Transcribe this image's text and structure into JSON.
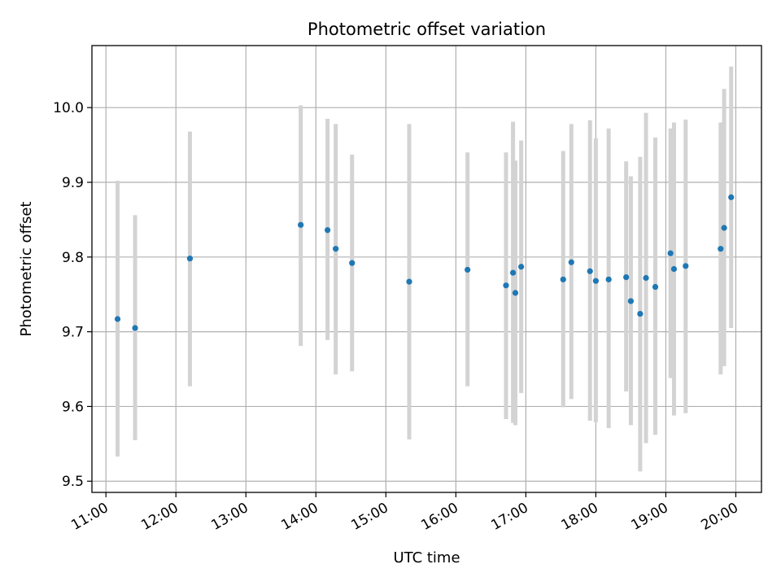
{
  "chart_data": {
    "type": "scatter",
    "title": "Photometric offset variation",
    "xlabel": "UTC time",
    "ylabel": "Photometric offset",
    "xlim": [
      "10:48",
      "20:22"
    ],
    "ylim": [
      9.485,
      10.083
    ],
    "x_ticks": [
      "11:00",
      "12:00",
      "13:00",
      "14:00",
      "15:00",
      "16:00",
      "17:00",
      "18:00",
      "19:00",
      "20:00"
    ],
    "y_ticks": [
      9.5,
      9.6,
      9.7,
      9.8,
      9.9,
      10.0
    ],
    "y_tick_labels": [
      "9.5",
      "9.6",
      "9.7",
      "9.8",
      "9.9",
      "10.0"
    ],
    "grid": true,
    "point_color": "#1f77b4",
    "errorbar_color": "#d3d3d3",
    "points": [
      {
        "x": "11:10",
        "y": 9.717,
        "y_low": 9.533,
        "y_high": 9.902
      },
      {
        "x": "11:25",
        "y": 9.705,
        "y_low": 9.555,
        "y_high": 9.856
      },
      {
        "x": "12:12",
        "y": 9.798,
        "y_low": 9.627,
        "y_high": 9.968
      },
      {
        "x": "13:47",
        "y": 9.843,
        "y_low": 9.681,
        "y_high": 10.003
      },
      {
        "x": "14:10",
        "y": 9.836,
        "y_low": 9.689,
        "y_high": 9.985
      },
      {
        "x": "14:17",
        "y": 9.811,
        "y_low": 9.643,
        "y_high": 9.978
      },
      {
        "x": "14:31",
        "y": 9.792,
        "y_low": 9.647,
        "y_high": 9.937
      },
      {
        "x": "15:20",
        "y": 9.767,
        "y_low": 9.556,
        "y_high": 9.978
      },
      {
        "x": "16:10",
        "y": 9.783,
        "y_low": 9.627,
        "y_high": 9.94
      },
      {
        "x": "16:43",
        "y": 9.762,
        "y_low": 9.583,
        "y_high": 9.94
      },
      {
        "x": "16:49",
        "y": 9.779,
        "y_low": 9.578,
        "y_high": 9.981
      },
      {
        "x": "16:51",
        "y": 9.752,
        "y_low": 9.575,
        "y_high": 9.929
      },
      {
        "x": "16:56",
        "y": 9.787,
        "y_low": 9.618,
        "y_high": 9.956
      },
      {
        "x": "17:32",
        "y": 9.77,
        "y_low": 9.599,
        "y_high": 9.942
      },
      {
        "x": "17:39",
        "y": 9.793,
        "y_low": 9.61,
        "y_high": 9.978
      },
      {
        "x": "17:55",
        "y": 9.781,
        "y_low": 9.581,
        "y_high": 9.983
      },
      {
        "x": "18:00",
        "y": 9.768,
        "y_low": 9.579,
        "y_high": 9.959
      },
      {
        "x": "18:11",
        "y": 9.77,
        "y_low": 9.571,
        "y_high": 9.972
      },
      {
        "x": "18:26",
        "y": 9.773,
        "y_low": 9.62,
        "y_high": 9.928
      },
      {
        "x": "18:30",
        "y": 9.741,
        "y_low": 9.575,
        "y_high": 9.908
      },
      {
        "x": "18:38",
        "y": 9.724,
        "y_low": 9.513,
        "y_high": 9.934
      },
      {
        "x": "18:43",
        "y": 9.772,
        "y_low": 9.551,
        "y_high": 9.993
      },
      {
        "x": "18:51",
        "y": 9.76,
        "y_low": 9.562,
        "y_high": 9.96
      },
      {
        "x": "19:04",
        "y": 9.805,
        "y_low": 9.638,
        "y_high": 9.972
      },
      {
        "x": "19:07",
        "y": 9.784,
        "y_low": 9.588,
        "y_high": 9.98
      },
      {
        "x": "19:17",
        "y": 9.788,
        "y_low": 9.591,
        "y_high": 9.984
      },
      {
        "x": "19:47",
        "y": 9.811,
        "y_low": 9.643,
        "y_high": 9.98
      },
      {
        "x": "19:50",
        "y": 9.839,
        "y_low": 9.654,
        "y_high": 10.025
      },
      {
        "x": "19:56",
        "y": 9.88,
        "y_low": 9.705,
        "y_high": 10.055
      }
    ]
  }
}
